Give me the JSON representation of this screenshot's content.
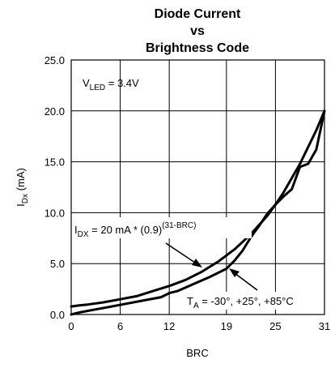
{
  "chart_data": {
    "type": "line",
    "title": [
      "Diode Current",
      "vs",
      "Brightness Code"
    ],
    "xlabel": "BRC",
    "ylabel": {
      "main": "I",
      "sub": "Dx",
      "unit": " (mA)"
    },
    "xlim": [
      0,
      31
    ],
    "ylim": [
      0,
      25
    ],
    "xticks": [
      0,
      6,
      12,
      19,
      25,
      31
    ],
    "yticks": [
      0,
      5,
      10,
      15,
      20,
      25
    ],
    "ytick_labels": [
      "0.0",
      "5.0",
      "10.0",
      "15.0",
      "20.0",
      "25.0"
    ],
    "grid": true,
    "series": [
      {
        "x": [
          0,
          1,
          2,
          4,
          6,
          8,
          10,
          12,
          14,
          16,
          18,
          20,
          22,
          24,
          25,
          26,
          28,
          30,
          31
        ],
        "y": [
          0.79,
          0.89,
          0.98,
          1.2,
          1.5,
          1.8,
          2.3,
          2.8,
          3.4,
          4.2,
          5.2,
          6.4,
          7.9,
          9.7,
          10.8,
          12.0,
          14.8,
          18.1,
          20.0
        ]
      },
      {
        "x": [
          0,
          1,
          3,
          5,
          7,
          9,
          11,
          12,
          13,
          15,
          17,
          18,
          19,
          20,
          21,
          22,
          23,
          24,
          25,
          26,
          27,
          28,
          29,
          30,
          31
        ],
        "y": [
          0.0,
          0.2,
          0.5,
          0.8,
          1.1,
          1.4,
          1.7,
          2.1,
          2.3,
          3.0,
          3.7,
          4.1,
          4.5,
          5.3,
          6.3,
          7.6,
          8.7,
          9.9,
          10.8,
          11.6,
          12.3,
          14.5,
          14.8,
          16.2,
          20.0
        ]
      }
    ],
    "annotations": {
      "vled": {
        "main": "V",
        "sub": "LED",
        "rest": " = 3.4V"
      },
      "formula": {
        "main": "I",
        "sub": "DX",
        "rest": " = 20 mA * (0.9)",
        "sup": "(31-BRC)"
      },
      "temp": {
        "main": "T",
        "sub": "A",
        "rest": " = -30°, +25°, +85°C"
      }
    }
  }
}
